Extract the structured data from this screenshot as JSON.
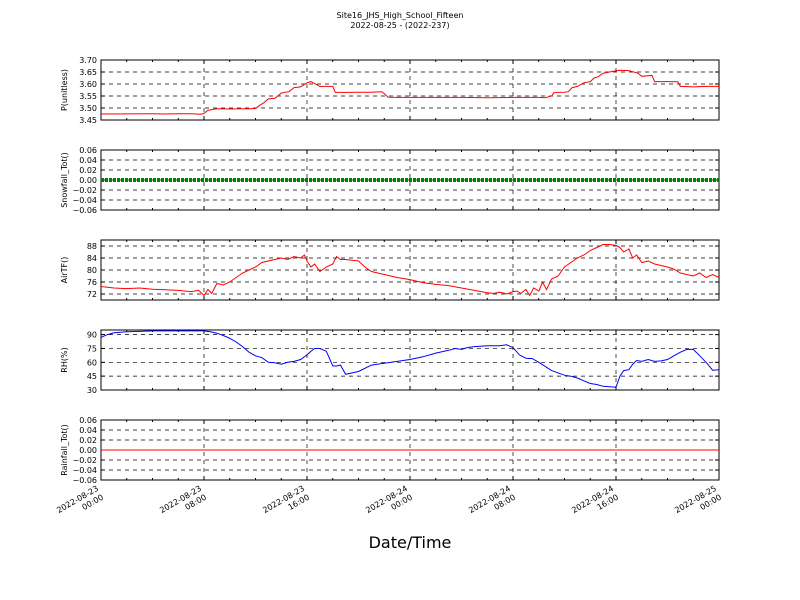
{
  "figure": {
    "title_line1": "Site16_JHS_High_School_Fifteen",
    "title_line2": "2022-08-25 - (2022-237)",
    "xlabel": "Date/Time",
    "x_ticks": [
      "2022-08-23\n00:00",
      "2022-08-23\n08:00",
      "2022-08-23\n16:00",
      "2022-08-24\n00:00",
      "2022-08-24\n08:00",
      "2022-08-24\n16:00",
      "2022-08-25\n00:00"
    ]
  },
  "chart_data": [
    {
      "type": "line",
      "ylabel": "P(unitless)",
      "ylim": [
        3.45,
        3.7
      ],
      "yticks": [
        "3.45",
        "3.50",
        "3.55",
        "3.60",
        "3.65",
        "3.70"
      ],
      "xlim_hours": [
        0,
        48
      ],
      "grid": true,
      "series": [
        {
          "color": "#ff0000",
          "x": [
            0,
            4,
            5,
            6,
            7,
            7.8,
            8,
            8.3,
            9,
            10,
            11,
            11.5,
            12,
            12.3,
            12.6,
            13,
            13.5,
            14,
            14.3,
            14.6,
            15,
            15.5,
            16,
            16.3,
            17,
            18,
            18.2,
            19,
            20,
            21,
            21.8,
            22,
            22.3,
            23,
            24,
            26,
            28,
            30,
            32,
            34,
            34.5,
            35,
            35.2,
            36,
            36.3,
            36.6,
            37,
            37.5,
            38,
            38.3,
            38.6,
            39,
            39.5,
            40,
            40.3,
            41,
            41.7,
            42,
            42.8,
            43,
            44,
            44.8,
            45,
            46,
            47,
            48
          ],
          "y": [
            3.475,
            3.476,
            3.475,
            3.476,
            3.476,
            3.474,
            3.478,
            3.49,
            3.497,
            3.496,
            3.497,
            3.497,
            3.498,
            3.51,
            3.52,
            3.538,
            3.54,
            3.562,
            3.566,
            3.568,
            3.585,
            3.588,
            3.605,
            3.61,
            3.59,
            3.59,
            3.565,
            3.565,
            3.566,
            3.566,
            3.568,
            3.56,
            3.545,
            3.544,
            3.544,
            3.544,
            3.544,
            3.543,
            3.544,
            3.544,
            3.543,
            3.55,
            3.565,
            3.566,
            3.568,
            3.585,
            3.59,
            3.605,
            3.61,
            3.625,
            3.63,
            3.645,
            3.65,
            3.655,
            3.657,
            3.656,
            3.645,
            3.632,
            3.636,
            3.61,
            3.61,
            3.609,
            3.59,
            3.588,
            3.59,
            3.59
          ]
        }
      ]
    },
    {
      "type": "line",
      "ylabel": "Snowfall_Tot()",
      "ylim": [
        -0.06,
        0.06
      ],
      "yticks": [
        "−0.06",
        "−0.04",
        "−0.02",
        "0.00",
        "0.02",
        "0.04",
        "0.06"
      ],
      "xlim_hours": [
        0,
        48
      ],
      "grid": true,
      "series": [
        {
          "color": "#008000",
          "x": [
            0,
            48
          ],
          "y": [
            0,
            0
          ]
        }
      ]
    },
    {
      "type": "line",
      "ylabel": "AirTF()",
      "ylim": [
        70,
        90
      ],
      "yticks": [
        "72",
        "76",
        "80",
        "84",
        "88"
      ],
      "xlim_hours": [
        0,
        48
      ],
      "grid": true,
      "series": [
        {
          "color": "#ff0000",
          "x": [
            0,
            1,
            2,
            3,
            4,
            5,
            6,
            7,
            7.6,
            8,
            8.3,
            8.6,
            9,
            9.5,
            10,
            11,
            11.5,
            12,
            12.5,
            13,
            13.5,
            14,
            14.5,
            15,
            15.5,
            15.8,
            16,
            16.3,
            16.6,
            17,
            17.5,
            18,
            18.3,
            18.6,
            19,
            20,
            20.5,
            21,
            22,
            23,
            24,
            25,
            26,
            27,
            28,
            29,
            30,
            30.5,
            31,
            31.5,
            32,
            32.3,
            32.6,
            33,
            33.3,
            33.6,
            34,
            34.3,
            34.6,
            35,
            35.5,
            36,
            36.5,
            37,
            37.5,
            38,
            38.5,
            39,
            39.5,
            40,
            40.3,
            40.6,
            41,
            41.3,
            41.6,
            42,
            42.5,
            43,
            43.5,
            44,
            44.5,
            45,
            45.5,
            46,
            46.5,
            47,
            47.5,
            48
          ],
          "y": [
            74.5,
            74,
            73.8,
            74,
            73.6,
            73.4,
            73.2,
            72.8,
            73.2,
            71.5,
            73.5,
            72.2,
            75.5,
            75,
            76,
            79,
            80,
            81,
            82.5,
            83,
            83.5,
            84,
            83.5,
            84.5,
            84,
            85,
            83,
            81,
            82,
            79.5,
            81,
            82,
            84.5,
            83.5,
            83.5,
            83,
            81,
            79.5,
            78.5,
            77.5,
            76.8,
            75.8,
            75.2,
            74.8,
            74,
            73.2,
            72.4,
            72.2,
            72.6,
            72,
            72.8,
            73,
            72.2,
            73.5,
            71.5,
            74,
            73,
            76,
            73.5,
            77,
            78,
            81,
            82.5,
            84,
            85,
            86.5,
            87.5,
            88.5,
            88.5,
            88.2,
            87.5,
            86,
            87,
            84,
            85,
            82.5,
            83,
            82,
            81.5,
            81,
            80.3,
            79,
            78.5,
            78,
            79,
            77.5,
            78.5,
            77.5
          ]
        }
      ]
    },
    {
      "type": "line",
      "ylabel": "RH(%)",
      "ylim": [
        30,
        95
      ],
      "yticks": [
        "30",
        "45",
        "60",
        "75",
        "90"
      ],
      "xlim_hours": [
        0,
        48
      ],
      "grid": true,
      "series": [
        {
          "color": "#0000ff",
          "x": [
            0,
            0.5,
            1,
            2,
            3,
            4,
            5,
            6,
            7,
            8,
            8.5,
            9,
            9.5,
            10,
            10.5,
            11,
            11.5,
            12,
            12.5,
            13,
            13.5,
            14,
            14.5,
            15,
            15.5,
            16,
            16.3,
            16.6,
            17,
            17.5,
            18,
            18.3,
            18.6,
            19,
            19.5,
            20,
            21,
            22,
            23,
            24,
            25,
            26,
            27,
            27.5,
            28,
            28.5,
            29,
            30,
            31,
            31.5,
            32,
            32.5,
            33,
            33.5,
            34,
            35,
            36,
            36.5,
            37,
            37.5,
            38,
            38.5,
            39,
            39.5,
            40,
            40.3,
            40.6,
            41,
            41.3,
            41.6,
            42,
            42.5,
            43,
            43.5,
            44,
            44.5,
            45,
            45.5,
            46,
            46.5,
            47,
            47.5,
            48
          ],
          "y": [
            87,
            90,
            92,
            93,
            93.5,
            94,
            94,
            94.2,
            94,
            94,
            93,
            91.5,
            89,
            86,
            82,
            77,
            71,
            67,
            65,
            60,
            59.5,
            58,
            60,
            61,
            63,
            68,
            72,
            75,
            75,
            72,
            56,
            56,
            57,
            47,
            48.5,
            50,
            57,
            59,
            61,
            63,
            66,
            70,
            73,
            75,
            74,
            76,
            77,
            78,
            78,
            79,
            76,
            68,
            64.5,
            64,
            60,
            51,
            46,
            45,
            43,
            40,
            37,
            36,
            34,
            33.5,
            33,
            45,
            51,
            52,
            58,
            62,
            61,
            63,
            61,
            61.5,
            63,
            67,
            71,
            74,
            74,
            67,
            60,
            51.5,
            52
          ]
        }
      ]
    },
    {
      "type": "line",
      "ylabel": "Rainfall_Tot()",
      "ylim": [
        -0.06,
        0.06
      ],
      "yticks": [
        "−0.06",
        "−0.04",
        "−0.02",
        "0.00",
        "0.02",
        "0.04",
        "0.06"
      ],
      "xlim_hours": [
        0,
        48
      ],
      "grid": true,
      "series": [
        {
          "color": "#ff0000",
          "x": [
            0,
            48
          ],
          "y": [
            0,
            0
          ]
        }
      ]
    }
  ]
}
